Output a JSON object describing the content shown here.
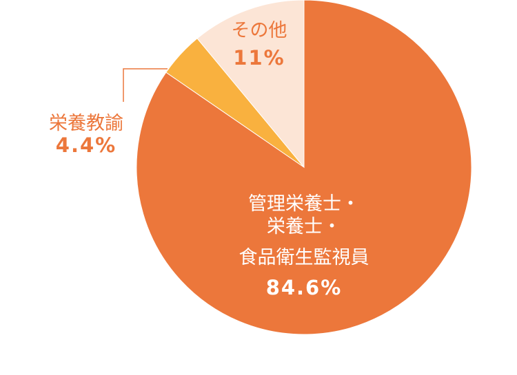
{
  "chart_data": {
    "type": "pie",
    "categories": [
      "管理栄養士・\n栄養士・\n食品衛生監視員",
      "栄養教諭",
      "その他"
    ],
    "values": [
      84.6,
      4.4,
      11
    ],
    "value_labels": [
      "84.6%",
      "4.4%",
      "11%"
    ],
    "colors": [
      "#ec773b",
      "#f9b13f",
      "#fce5d6"
    ]
  }
}
